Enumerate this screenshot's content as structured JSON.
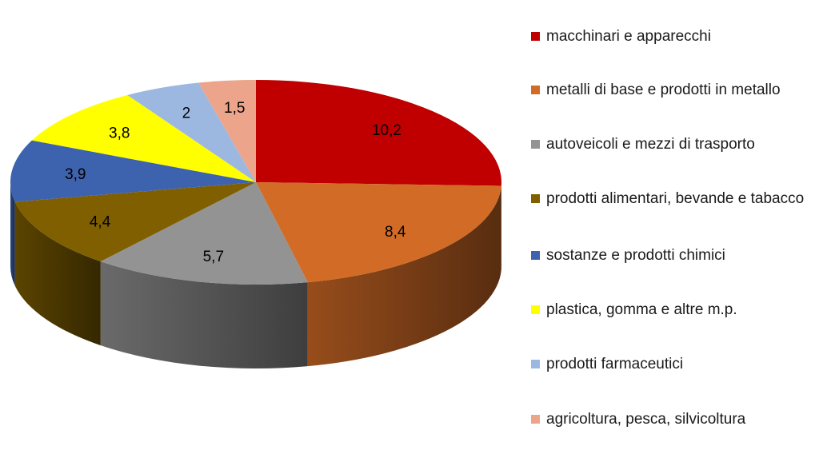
{
  "chart_data": {
    "type": "pie",
    "style": "3d",
    "categories": [
      "macchinari e apparecchi",
      "metalli di base e prodotti in metallo",
      "autoveicoli e mezzi di trasporto",
      "prodotti alimentari, bevande e tabacco",
      "sostanze e prodotti chimici",
      "plastica, gomma e altre m.p.",
      "prodotti farmaceutici",
      "agricoltura, pesca, silvicoltura"
    ],
    "values": [
      10.2,
      8.4,
      5.7,
      4.4,
      3.9,
      3.8,
      2,
      1.5
    ],
    "value_labels": [
      "10,2",
      "8,4",
      "5,7",
      "4,4",
      "3,9",
      "3,8",
      "2",
      "1,5"
    ],
    "colors": [
      "#C00000",
      "#D26B26",
      "#939393",
      "#7F5F00",
      "#3D62AE",
      "#FFFF00",
      "#9DB8E0",
      "#ECA48A"
    ],
    "legend_position": "right"
  }
}
